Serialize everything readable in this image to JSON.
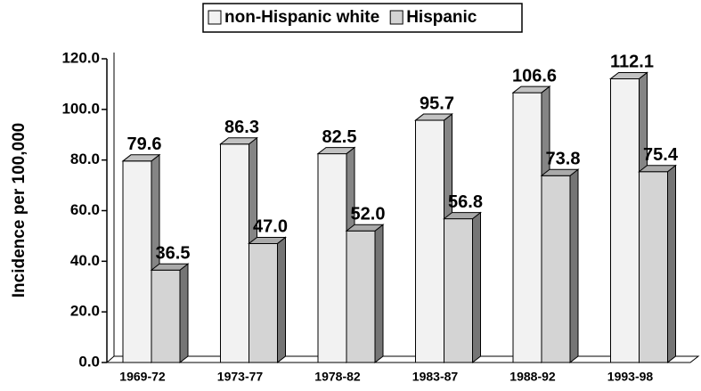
{
  "chart_data": {
    "type": "bar3d",
    "y_label": "Incidence per 100,000",
    "categories": [
      "1969-72",
      "1973-77",
      "1978-82",
      "1983-87",
      "1988-92",
      "1993-98"
    ],
    "series": [
      {
        "name": "non-Hispanic white",
        "color": "#f2f2f2",
        "values": [
          79.6,
          86.3,
          82.5,
          95.7,
          106.6,
          112.1
        ]
      },
      {
        "name": "Hispanic",
        "color": "#d4d4d4",
        "values": [
          36.5,
          47.0,
          52.0,
          56.8,
          73.8,
          75.4
        ],
        "value_labels": [
          "36.5",
          "47.0",
          "52.0",
          "56.8",
          "73.8",
          "75.4"
        ]
      }
    ],
    "ylim": [
      0,
      120
    ],
    "yticks": [
      {
        "value": 0,
        "label": "0.0"
      },
      {
        "value": 20,
        "label": "20.0"
      },
      {
        "value": 40,
        "label": "40.0"
      },
      {
        "value": 60,
        "label": "60.0"
      },
      {
        "value": 80,
        "label": "80.0"
      },
      {
        "value": 100,
        "label": "100.0"
      },
      {
        "value": 120,
        "label": "120.0"
      }
    ],
    "legend": "top"
  }
}
